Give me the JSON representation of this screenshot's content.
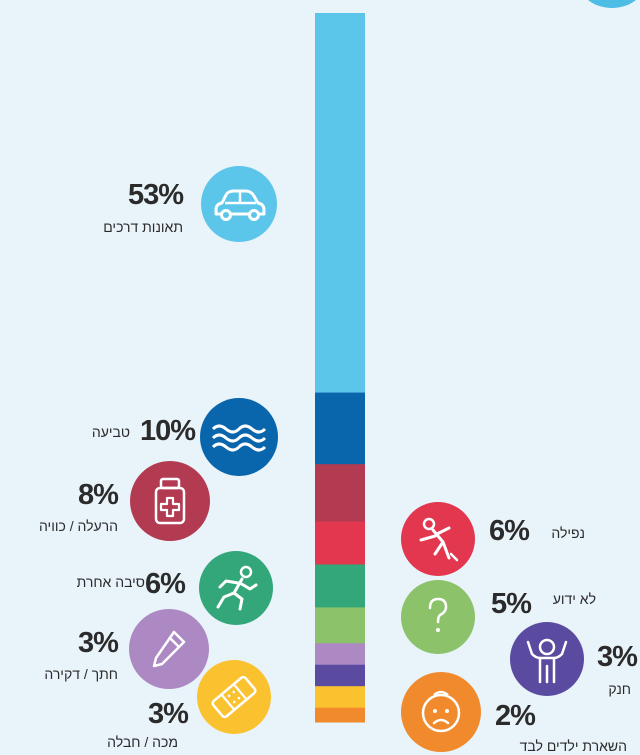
{
  "chart_data": {
    "type": "bar",
    "orientation": "stacked-vertical",
    "segments": [
      {
        "label": "תאונות דרכים",
        "value": 53,
        "display": "53%",
        "color": "#5bc5ea",
        "icon": "car-icon",
        "side": "left"
      },
      {
        "label": "טביעה",
        "value": 10,
        "display": "10%",
        "color": "#0a66ac",
        "icon": "waves-icon",
        "side": "left"
      },
      {
        "label": "הרעלה / כוויה",
        "value": 8,
        "display": "8%",
        "color": "#b23b52",
        "icon": "medicine-bottle-icon",
        "side": "left"
      },
      {
        "label": "נפילה",
        "value": 6,
        "display": "6%",
        "color": "#e2374f",
        "icon": "falling-person-icon",
        "side": "right"
      },
      {
        "label": "סיבה אחרת",
        "value": 6,
        "display": "6%",
        "color": "#34a77a",
        "icon": "running-person-icon",
        "side": "left"
      },
      {
        "label": "לא ידוע",
        "value": 5,
        "display": "5%",
        "color": "#8cc26a",
        "icon": "question-mark-icon",
        "side": "right"
      },
      {
        "label": "חתך / דקירה",
        "value": 3,
        "display": "3%",
        "color": "#ad89c4",
        "icon": "knife-icon",
        "side": "left"
      },
      {
        "label": "חנק",
        "value": 3,
        "display": "3%",
        "color": "#5b4ba0",
        "icon": "child-icon",
        "side": "right"
      },
      {
        "label": "מכה / חבלה",
        "value": 3,
        "display": "3%",
        "color": "#fbc230",
        "icon": "bandage-icon",
        "side": "left"
      },
      {
        "label": "השארת ילדים לבד",
        "value": 2,
        "display": "2%",
        "color": "#f08a2c",
        "icon": "sad-baby-icon",
        "side": "right"
      }
    ]
  }
}
